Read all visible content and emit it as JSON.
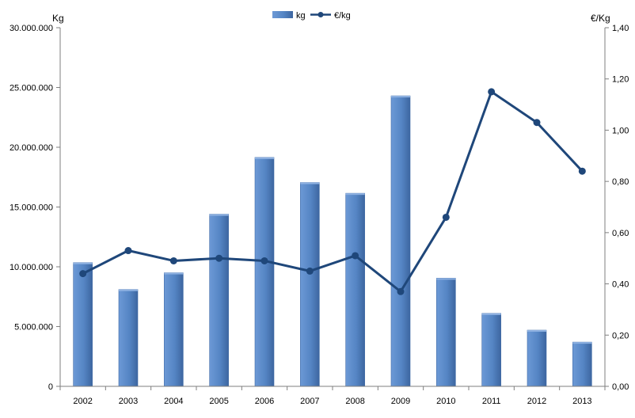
{
  "chart_data": {
    "type": "bar",
    "categories": [
      "2002",
      "2003",
      "2004",
      "2005",
      "2006",
      "2007",
      "2008",
      "2009",
      "2010",
      "2011",
      "2012",
      "2013"
    ],
    "series": [
      {
        "name": "kg",
        "type": "bar",
        "axis": "left",
        "values": [
          10350000,
          8100000,
          9500000,
          14400000,
          19150000,
          17050000,
          16150000,
          24300000,
          9050000,
          6100000,
          4700000,
          3700000
        ]
      },
      {
        "name": "€/kg",
        "type": "line",
        "axis": "right",
        "values": [
          0.44,
          0.53,
          0.49,
          0.5,
          0.49,
          0.45,
          0.51,
          0.37,
          0.66,
          1.15,
          1.03,
          0.84
        ]
      }
    ],
    "left_axis": {
      "label": "Kg",
      "ylim": [
        0,
        30000000
      ],
      "ticks": [
        "0",
        "5.000.000",
        "10.000.000",
        "15.000.000",
        "20.000.000",
        "25.000.000",
        "30.000.000"
      ]
    },
    "right_axis": {
      "label": "€/Kg",
      "ylim": [
        0,
        1.4
      ],
      "ticks": [
        "0,00",
        "0,20",
        "0,40",
        "0,60",
        "0,80",
        "1,00",
        "1,20",
        "1,40"
      ]
    },
    "legend": {
      "position": "top-center",
      "items": [
        "kg",
        "€/kg"
      ]
    },
    "grid": false,
    "colors": {
      "bar": "#5585c4",
      "bar_dark": "#3f6aa6",
      "line": "#1f477a",
      "axis": "#7f7f7f"
    }
  }
}
